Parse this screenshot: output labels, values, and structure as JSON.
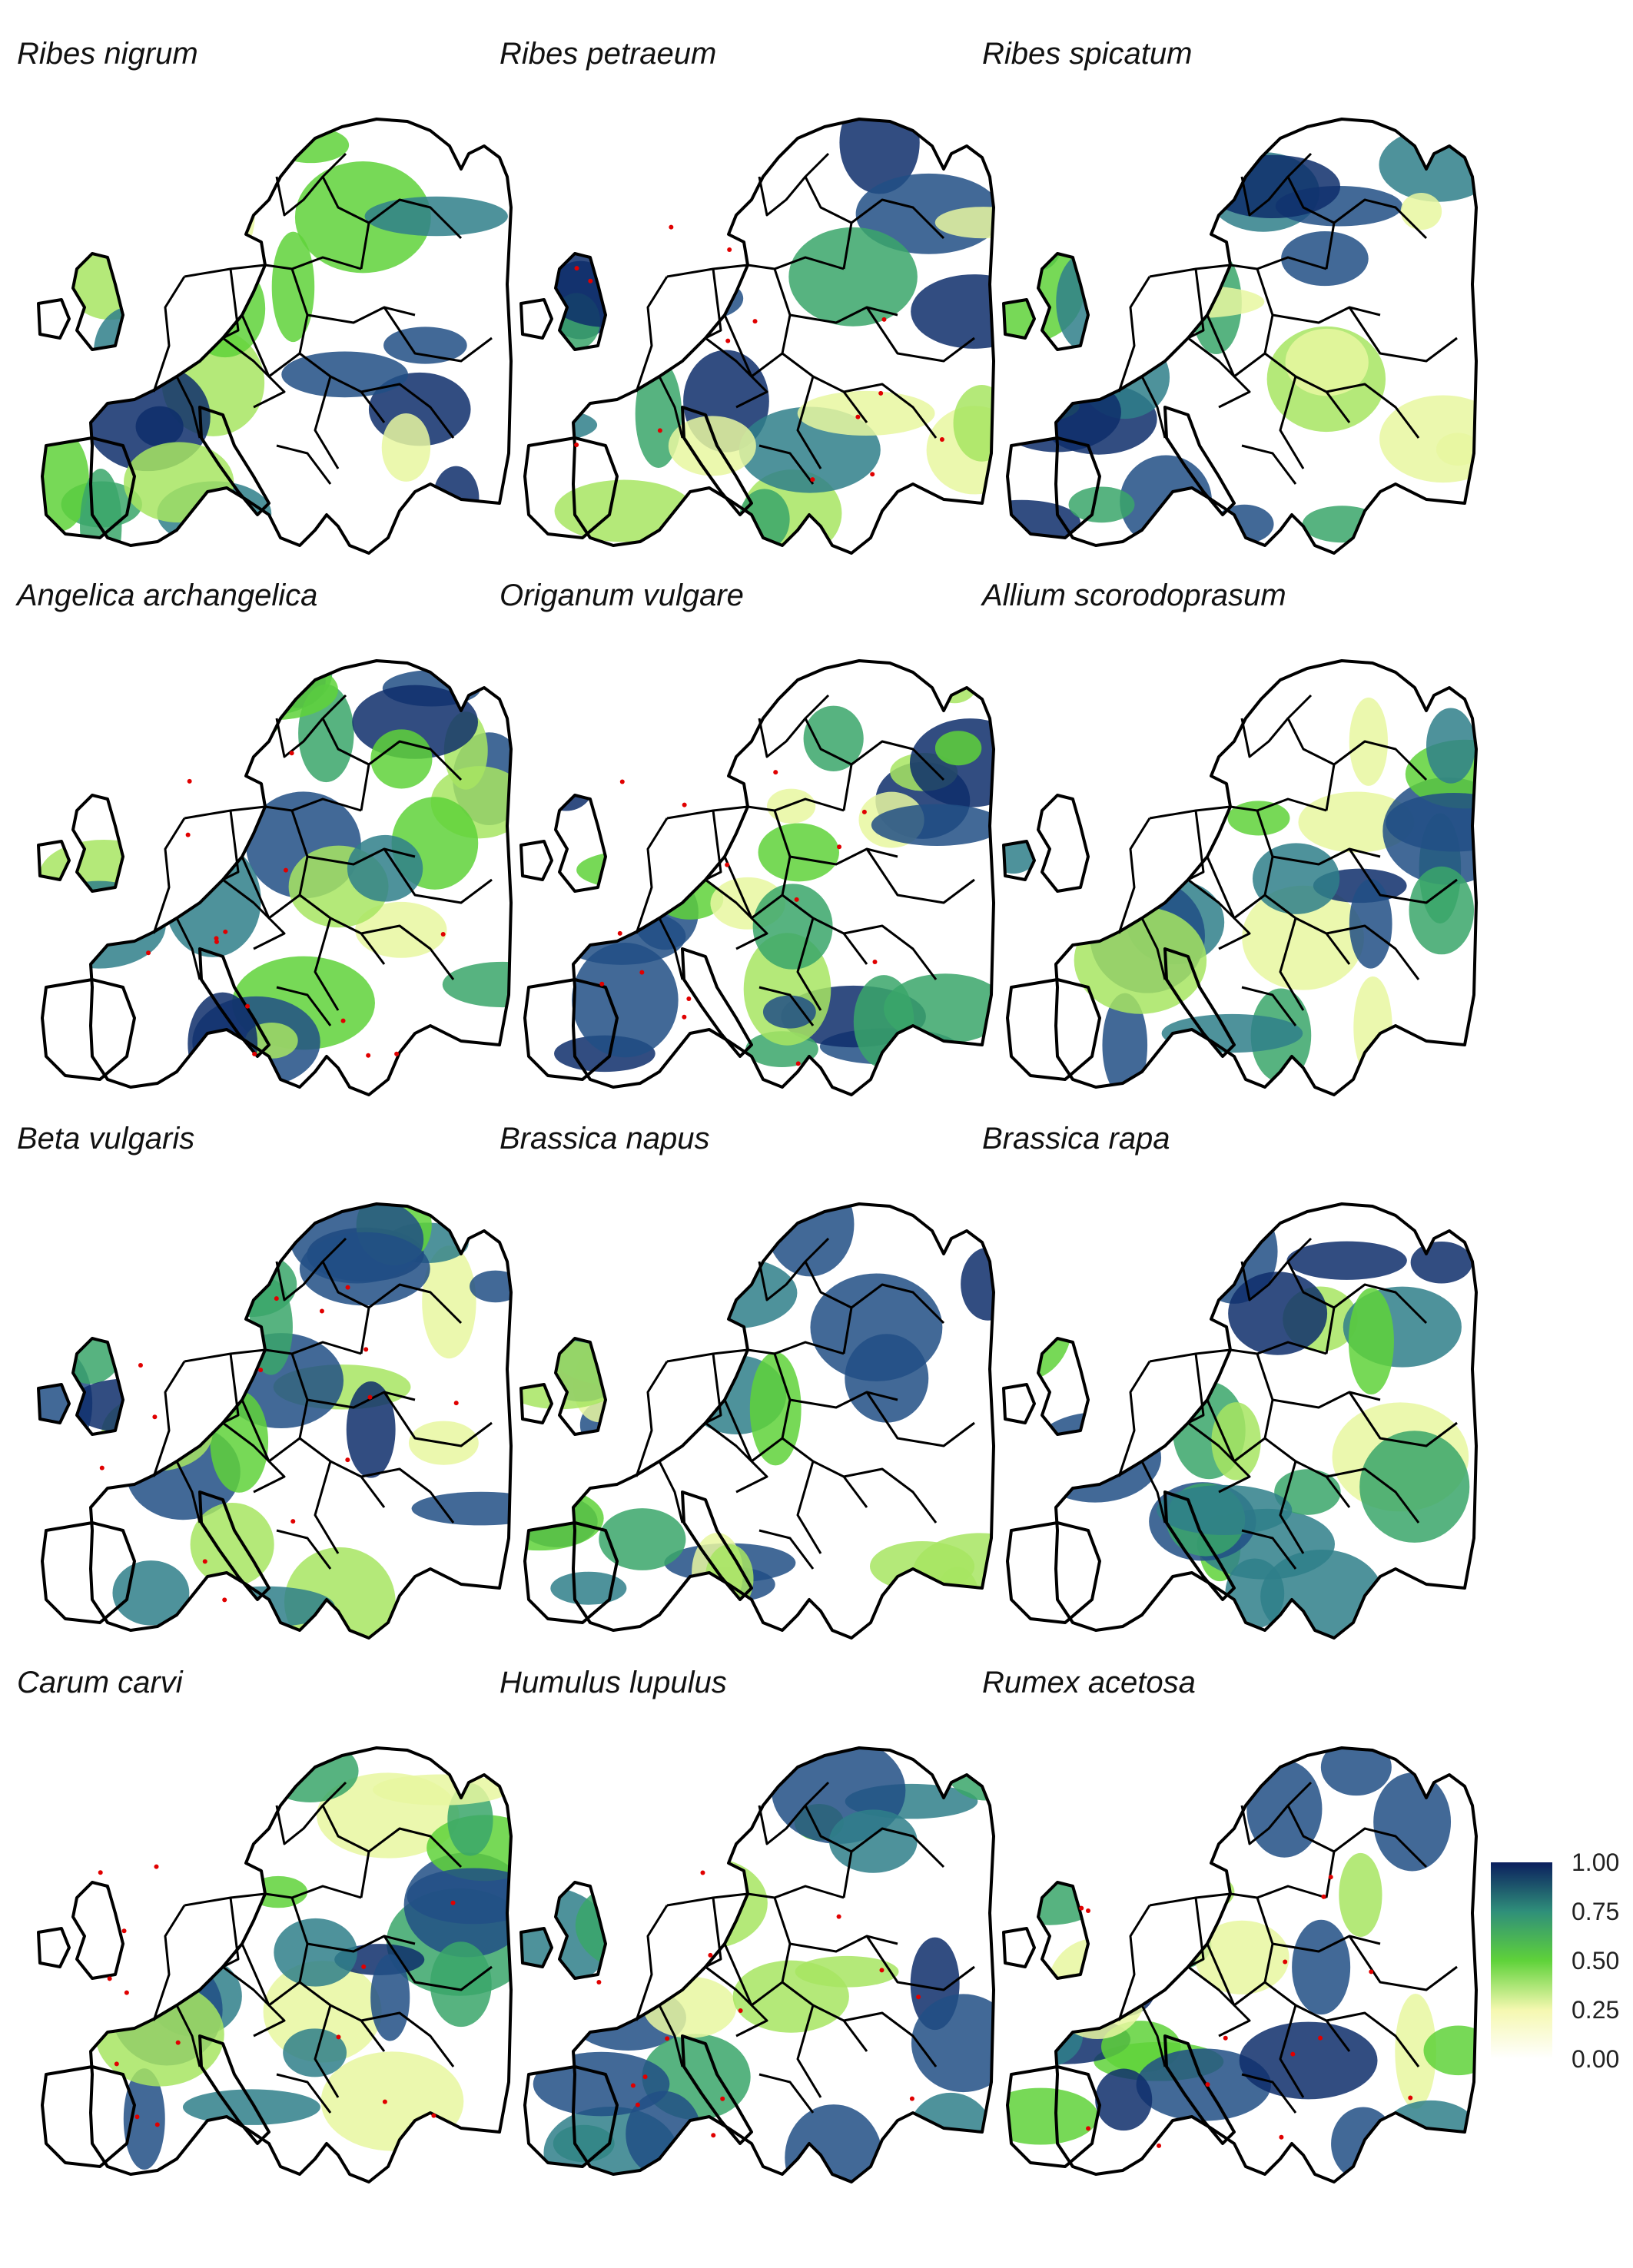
{
  "panels": [
    {
      "species": "Ribes nigrum",
      "variant": 0,
      "red_points": false
    },
    {
      "species": "Ribes petraeum",
      "variant": 1,
      "red_points": true
    },
    {
      "species": "Ribes spicatum",
      "variant": 2,
      "red_points": false
    },
    {
      "species": "Angelica archangelica",
      "variant": 3,
      "red_points": true
    },
    {
      "species": "Origanum vulgare",
      "variant": 4,
      "red_points": true
    },
    {
      "species": "Allium scorodoprasum",
      "variant": 5,
      "red_points": false
    },
    {
      "species": "Beta vulgaris",
      "variant": 6,
      "red_points": true
    },
    {
      "species": "Brassica napus",
      "variant": 7,
      "red_points": false
    },
    {
      "species": "Brassica rapa",
      "variant": 8,
      "red_points": false
    },
    {
      "species": "Carum carvi",
      "variant": 9,
      "red_points": true
    },
    {
      "species": "Humulus lupulus",
      "variant": 10,
      "red_points": true
    },
    {
      "species": "Rumex acetosa",
      "variant": 11,
      "red_points": true
    }
  ],
  "legend": {
    "ticks": [
      "1.00",
      "0.75",
      "0.50",
      "0.25",
      "0.00"
    ],
    "colors": [
      "#ffffe0",
      "#d9f0a3",
      "#5fd23a",
      "#3aa66a",
      "#0b2e6b"
    ]
  },
  "colors": {
    "boundary": "#000000",
    "occurrence": "#e00000"
  }
}
